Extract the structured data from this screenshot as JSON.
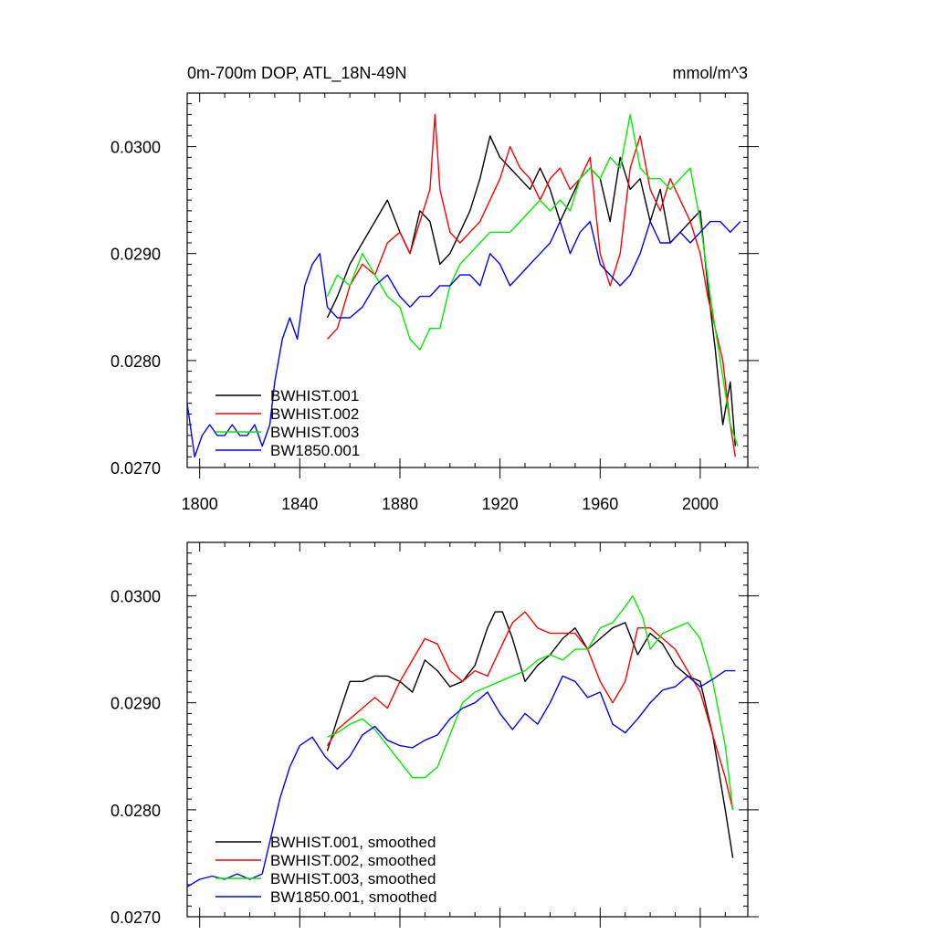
{
  "chart_data": [
    {
      "type": "line",
      "title": "0m-700m DOP, ATL_18N-49N",
      "units": "mmol/m^3",
      "xlabel": "",
      "ylabel": "",
      "xlim": [
        1795,
        2019
      ],
      "ylim": [
        0.027,
        0.0305
      ],
      "xticks": [
        1800,
        1840,
        1880,
        1920,
        1960,
        2000
      ],
      "xtick_labels": [
        "1800",
        "1840",
        "1880",
        "1920",
        "1960",
        "2000"
      ],
      "yticks": [
        0.027,
        0.028,
        0.029,
        0.03
      ],
      "ytick_labels": [
        "0.0270",
        "0.0280",
        "0.0290",
        "0.0300"
      ],
      "legend": {
        "position": "bottom-left"
      },
      "series": [
        {
          "name": "BWHIST.001",
          "color": "#000000",
          "x": [
            1851,
            1855,
            1860,
            1865,
            1870,
            1875,
            1880,
            1884,
            1888,
            1892,
            1896,
            1900,
            1904,
            1908,
            1912,
            1916,
            1920,
            1924,
            1928,
            1932,
            1936,
            1940,
            1944,
            1948,
            1952,
            1956,
            1960,
            1964,
            1968,
            1972,
            1976,
            1980,
            1984,
            1988,
            1992,
            1996,
            2000,
            2003,
            2006,
            2009,
            2012,
            2014
          ],
          "y": [
            0.0284,
            0.0286,
            0.0289,
            0.0291,
            0.0293,
            0.0295,
            0.0292,
            0.029,
            0.0294,
            0.0293,
            0.0289,
            0.029,
            0.0292,
            0.0294,
            0.0297,
            0.0301,
            0.0299,
            0.0298,
            0.0297,
            0.0296,
            0.0298,
            0.0296,
            0.0293,
            0.0295,
            0.0297,
            0.0298,
            0.0297,
            0.0293,
            0.0299,
            0.0296,
            0.0297,
            0.0293,
            0.0296,
            0.0291,
            0.0292,
            0.0293,
            0.0294,
            0.0287,
            0.0281,
            0.0274,
            0.0278,
            0.0272
          ]
        },
        {
          "name": "BWHIST.002",
          "color": "#ff0000",
          "x": [
            1851,
            1855,
            1860,
            1865,
            1870,
            1875,
            1880,
            1884,
            1888,
            1892,
            1894,
            1896,
            1900,
            1904,
            1908,
            1912,
            1916,
            1920,
            1924,
            1928,
            1932,
            1936,
            1940,
            1944,
            1948,
            1952,
            1956,
            1960,
            1964,
            1968,
            1972,
            1976,
            1980,
            1984,
            1988,
            1992,
            1996,
            2000,
            2003,
            2006,
            2009,
            2012,
            2014
          ],
          "y": [
            0.0282,
            0.0283,
            0.0287,
            0.0289,
            0.0288,
            0.0291,
            0.0292,
            0.029,
            0.0293,
            0.0296,
            0.0303,
            0.0296,
            0.0292,
            0.0291,
            0.0292,
            0.0293,
            0.0295,
            0.0297,
            0.03,
            0.0298,
            0.0297,
            0.0295,
            0.0297,
            0.0298,
            0.0296,
            0.0297,
            0.0299,
            0.029,
            0.0287,
            0.029,
            0.0298,
            0.0301,
            0.0296,
            0.0294,
            0.0297,
            0.0295,
            0.0293,
            0.029,
            0.0286,
            0.0283,
            0.028,
            0.0274,
            0.0271
          ]
        },
        {
          "name": "BWHIST.003",
          "color": "#00ee00",
          "x": [
            1851,
            1855,
            1860,
            1865,
            1870,
            1875,
            1880,
            1884,
            1888,
            1892,
            1896,
            1900,
            1904,
            1908,
            1912,
            1916,
            1920,
            1924,
            1928,
            1932,
            1936,
            1940,
            1944,
            1948,
            1952,
            1956,
            1960,
            1964,
            1968,
            1972,
            1976,
            1980,
            1984,
            1988,
            1992,
            1996,
            2000,
            2004,
            2008,
            2012,
            2015
          ],
          "y": [
            0.0286,
            0.0288,
            0.0287,
            0.029,
            0.0288,
            0.0286,
            0.0285,
            0.0282,
            0.0281,
            0.0283,
            0.0283,
            0.0287,
            0.0289,
            0.029,
            0.0291,
            0.0292,
            0.0292,
            0.0292,
            0.0293,
            0.0294,
            0.0295,
            0.0294,
            0.0295,
            0.0294,
            0.0297,
            0.0298,
            0.0297,
            0.0299,
            0.0298,
            0.0303,
            0.0298,
            0.0297,
            0.0297,
            0.0296,
            0.0297,
            0.0298,
            0.0293,
            0.0286,
            0.028,
            0.0274,
            0.0272
          ]
        },
        {
          "name": "BW1850.001",
          "color": "#0000ff",
          "x": [
            1795,
            1798,
            1801,
            1804,
            1807,
            1810,
            1813,
            1816,
            1819,
            1822,
            1825,
            1828,
            1830,
            1833,
            1836,
            1839,
            1842,
            1845,
            1848,
            1851,
            1855,
            1860,
            1865,
            1870,
            1875,
            1880,
            1884,
            1888,
            1892,
            1896,
            1900,
            1904,
            1908,
            1912,
            1916,
            1920,
            1924,
            1928,
            1932,
            1936,
            1940,
            1944,
            1948,
            1952,
            1956,
            1960,
            1964,
            1968,
            1972,
            1976,
            1980,
            1984,
            1988,
            1992,
            1996,
            2000,
            2004,
            2008,
            2012,
            2016
          ],
          "y": [
            0.0276,
            0.0271,
            0.0273,
            0.0274,
            0.0273,
            0.0273,
            0.0274,
            0.0273,
            0.0273,
            0.0274,
            0.0272,
            0.0274,
            0.0278,
            0.0282,
            0.0284,
            0.0282,
            0.0287,
            0.0289,
            0.029,
            0.0285,
            0.0284,
            0.0284,
            0.0285,
            0.0287,
            0.0288,
            0.0286,
            0.0285,
            0.0286,
            0.0286,
            0.0287,
            0.0287,
            0.0288,
            0.0288,
            0.0287,
            0.029,
            0.0289,
            0.0287,
            0.0288,
            0.0289,
            0.029,
            0.0291,
            0.0293,
            0.029,
            0.0292,
            0.0293,
            0.0289,
            0.0288,
            0.0287,
            0.0288,
            0.029,
            0.0293,
            0.0291,
            0.0291,
            0.0292,
            0.0291,
            0.0292,
            0.0293,
            0.0293,
            0.0292,
            0.0293
          ]
        }
      ]
    },
    {
      "type": "line",
      "title": "",
      "xlabel": "",
      "ylabel": "",
      "xlim": [
        1795,
        2019
      ],
      "ylim": [
        0.027,
        0.0305
      ],
      "yticks": [
        0.027,
        0.028,
        0.029,
        0.03
      ],
      "ytick_labels": [
        "0.0270",
        "0.0280",
        "0.0290",
        "0.0300"
      ],
      "legend": {
        "position": "bottom-left"
      },
      "series": [
        {
          "name": "BWHIST.001, smoothed",
          "color": "#000000",
          "x": [
            1851,
            1855,
            1860,
            1865,
            1870,
            1875,
            1880,
            1885,
            1890,
            1895,
            1900,
            1905,
            1910,
            1915,
            1918,
            1921,
            1925,
            1930,
            1935,
            1940,
            1945,
            1950,
            1955,
            1960,
            1965,
            1970,
            1975,
            1980,
            1985,
            1990,
            1995,
            2000,
            2005,
            2010,
            2013
          ],
          "y": [
            0.02855,
            0.02885,
            0.0292,
            0.0292,
            0.02925,
            0.02925,
            0.0292,
            0.0291,
            0.0294,
            0.0293,
            0.02915,
            0.0292,
            0.02935,
            0.0297,
            0.02985,
            0.02985,
            0.0296,
            0.0292,
            0.02935,
            0.02945,
            0.0296,
            0.0297,
            0.0295,
            0.0296,
            0.0297,
            0.02975,
            0.02945,
            0.02965,
            0.02955,
            0.02935,
            0.02925,
            0.0292,
            0.0287,
            0.028,
            0.02755
          ]
        },
        {
          "name": "BWHIST.002, smoothed",
          "color": "#ff0000",
          "x": [
            1851,
            1855,
            1860,
            1865,
            1870,
            1875,
            1880,
            1885,
            1890,
            1895,
            1900,
            1905,
            1910,
            1915,
            1920,
            1925,
            1930,
            1935,
            1940,
            1945,
            1950,
            1955,
            1960,
            1965,
            1970,
            1975,
            1980,
            1985,
            1990,
            1995,
            2000,
            2005,
            2010,
            2013
          ],
          "y": [
            0.0286,
            0.02875,
            0.02885,
            0.02895,
            0.02905,
            0.02895,
            0.0292,
            0.0294,
            0.0296,
            0.02955,
            0.0293,
            0.0292,
            0.0293,
            0.02925,
            0.0295,
            0.02975,
            0.02985,
            0.0297,
            0.02965,
            0.02965,
            0.02965,
            0.0295,
            0.0292,
            0.029,
            0.0292,
            0.0297,
            0.0297,
            0.0296,
            0.0295,
            0.0293,
            0.0291,
            0.0287,
            0.0283,
            0.028
          ]
        },
        {
          "name": "BWHIST.003, smoothed",
          "color": "#00ee00",
          "x": [
            1851,
            1855,
            1860,
            1865,
            1870,
            1875,
            1880,
            1885,
            1890,
            1895,
            1900,
            1905,
            1910,
            1915,
            1920,
            1925,
            1930,
            1935,
            1940,
            1945,
            1950,
            1955,
            1960,
            1965,
            1970,
            1973,
            1977,
            1980,
            1985,
            1990,
            1995,
            2000,
            2005,
            2010,
            2013
          ],
          "y": [
            0.02868,
            0.02872,
            0.0288,
            0.02885,
            0.02875,
            0.0286,
            0.02845,
            0.0283,
            0.0283,
            0.0284,
            0.0287,
            0.029,
            0.0291,
            0.02915,
            0.0292,
            0.02925,
            0.0293,
            0.0294,
            0.02945,
            0.0294,
            0.0295,
            0.0295,
            0.0297,
            0.02975,
            0.0299,
            0.03,
            0.0298,
            0.0295,
            0.02965,
            0.0297,
            0.02975,
            0.0296,
            0.0292,
            0.0286,
            0.028
          ]
        },
        {
          "name": "BW1850.001, smoothed",
          "color": "#0000ff",
          "x": [
            1795,
            1800,
            1805,
            1810,
            1815,
            1820,
            1825,
            1828,
            1832,
            1836,
            1840,
            1845,
            1850,
            1855,
            1860,
            1865,
            1870,
            1875,
            1880,
            1885,
            1890,
            1895,
            1900,
            1905,
            1910,
            1915,
            1920,
            1925,
            1930,
            1935,
            1940,
            1945,
            1950,
            1955,
            1960,
            1965,
            1970,
            1975,
            1980,
            1985,
            1990,
            1995,
            2000,
            2005,
            2010,
            2014
          ],
          "y": [
            0.02728,
            0.02735,
            0.02738,
            0.02735,
            0.0274,
            0.02735,
            0.0274,
            0.0277,
            0.0281,
            0.0284,
            0.0286,
            0.02868,
            0.0285,
            0.02838,
            0.0285,
            0.0287,
            0.02878,
            0.02865,
            0.0286,
            0.02858,
            0.02865,
            0.0287,
            0.02885,
            0.02895,
            0.029,
            0.0291,
            0.0289,
            0.02875,
            0.0289,
            0.0288,
            0.029,
            0.02925,
            0.0292,
            0.02905,
            0.0291,
            0.0288,
            0.02872,
            0.02885,
            0.029,
            0.02912,
            0.02915,
            0.02925,
            0.02915,
            0.02922,
            0.0293,
            0.0293
          ]
        }
      ]
    }
  ]
}
